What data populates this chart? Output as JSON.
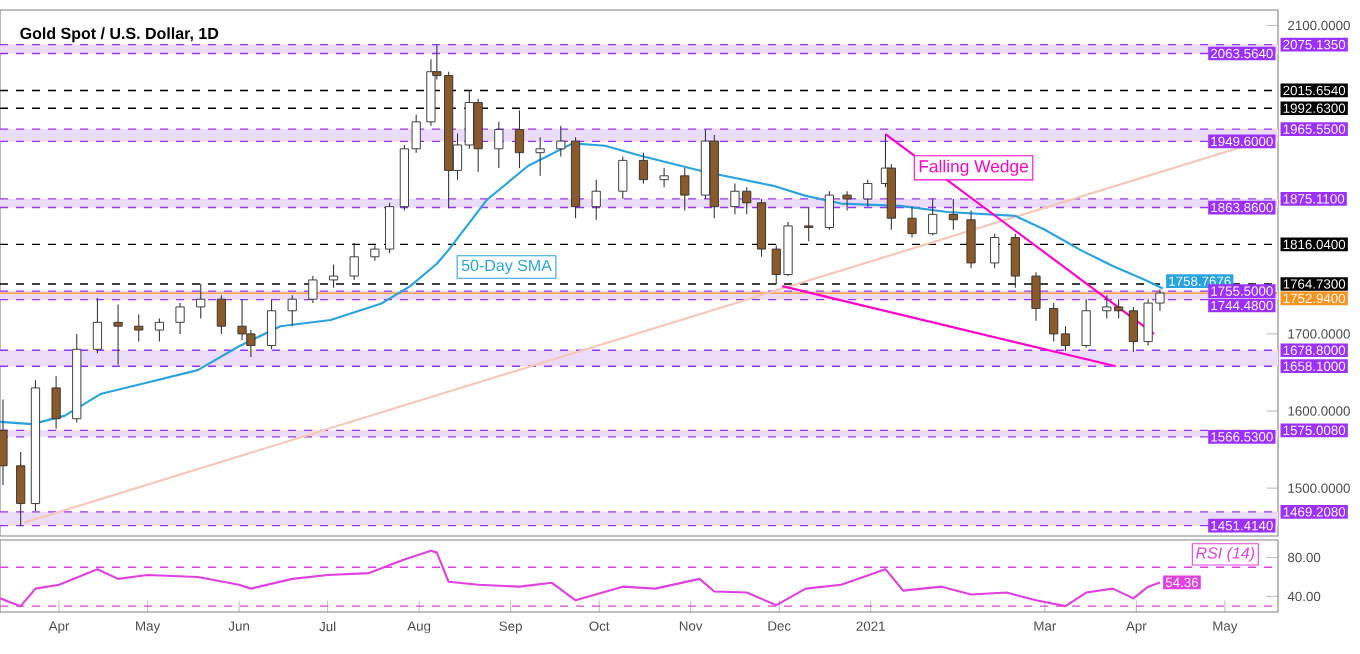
{
  "chart_data": [
    {
      "type": "candlestick",
      "title": "Gold Spot / U.S. Dollar, 1D",
      "x": [
        "2020-03-13",
        "2020-03-19",
        "2020-03-24",
        "2020-03-31",
        "2020-04-07",
        "2020-04-14",
        "2020-04-21",
        "2020-04-28",
        "2020-05-05",
        "2020-05-12",
        "2020-05-19",
        "2020-05-26",
        "2020-06-02",
        "2020-06-05",
        "2020-06-12",
        "2020-06-19",
        "2020-06-26",
        "2020-07-03",
        "2020-07-10",
        "2020-07-17",
        "2020-07-22",
        "2020-07-27",
        "2020-07-31",
        "2020-08-05",
        "2020-08-07",
        "2020-08-11",
        "2020-08-14",
        "2020-08-18",
        "2020-08-21",
        "2020-08-28",
        "2020-09-04",
        "2020-09-11",
        "2020-09-18",
        "2020-09-23",
        "2020-09-30",
        "2020-10-09",
        "2020-10-16",
        "2020-10-23",
        "2020-10-30",
        "2020-11-06",
        "2020-11-09",
        "2020-11-16",
        "2020-11-20",
        "2020-11-25",
        "2020-11-30",
        "2020-12-04",
        "2020-12-11",
        "2020-12-18",
        "2020-12-24",
        "2020-12-31",
        "2021-01-06",
        "2021-01-08",
        "2021-01-15",
        "2021-01-22",
        "2021-01-29",
        "2021-02-04",
        "2021-02-12",
        "2021-02-19",
        "2021-02-26",
        "2021-03-04",
        "2021-03-08",
        "2021-03-15",
        "2021-03-22",
        "2021-03-26",
        "2021-03-31",
        "2021-04-05",
        "2021-04-09"
      ],
      "ohlc": [
        [
          1575,
          1615,
          1504,
          1529
        ],
        [
          1529,
          1547,
          1451,
          1480
        ],
        [
          1480,
          1640,
          1470,
          1630
        ],
        [
          1630,
          1645,
          1577,
          1590
        ],
        [
          1590,
          1700,
          1585,
          1680
        ],
        [
          1680,
          1747,
          1675,
          1715
        ],
        [
          1715,
          1738,
          1660,
          1710
        ],
        [
          1710,
          1725,
          1690,
          1705
        ],
        [
          1705,
          1720,
          1690,
          1715
        ],
        [
          1715,
          1740,
          1700,
          1735
        ],
        [
          1735,
          1765,
          1720,
          1745
        ],
        [
          1745,
          1750,
          1700,
          1710
        ],
        [
          1710,
          1745,
          1692,
          1700
        ],
        [
          1700,
          1705,
          1670,
          1685
        ],
        [
          1685,
          1745,
          1680,
          1730
        ],
        [
          1730,
          1750,
          1710,
          1745
        ],
        [
          1745,
          1775,
          1740,
          1770
        ],
        [
          1770,
          1790,
          1760,
          1775
        ],
        [
          1775,
          1818,
          1770,
          1800
        ],
        [
          1800,
          1815,
          1795,
          1810
        ],
        [
          1810,
          1870,
          1805,
          1865
        ],
        [
          1865,
          1945,
          1860,
          1940
        ],
        [
          1940,
          1984,
          1935,
          1975
        ],
        [
          1975,
          2056,
          1970,
          2040
        ],
        [
          2040,
          2075,
          2030,
          2035
        ],
        [
          2035,
          2040,
          1863,
          1912
        ],
        [
          1912,
          1960,
          1900,
          1945
        ],
        [
          1945,
          2015,
          1940,
          2000
        ],
        [
          2000,
          2005,
          1910,
          1940
        ],
        [
          1940,
          1975,
          1915,
          1965
        ],
        [
          1965,
          1990,
          1915,
          1935
        ],
        [
          1935,
          1955,
          1905,
          1940
        ],
        [
          1940,
          1970,
          1930,
          1950
        ],
        [
          1950,
          1955,
          1850,
          1865
        ],
        [
          1865,
          1900,
          1848,
          1885
        ],
        [
          1885,
          1930,
          1875,
          1925
        ],
        [
          1925,
          1935,
          1895,
          1900
        ],
        [
          1900,
          1915,
          1890,
          1905
        ],
        [
          1905,
          1915,
          1860,
          1880
        ],
        [
          1880,
          1965,
          1875,
          1950
        ],
        [
          1950,
          1958,
          1850,
          1865
        ],
        [
          1865,
          1895,
          1855,
          1885
        ],
        [
          1885,
          1890,
          1855,
          1870
        ],
        [
          1870,
          1875,
          1800,
          1810
        ],
        [
          1810,
          1815,
          1764,
          1777
        ],
        [
          1777,
          1845,
          1775,
          1840
        ],
        [
          1840,
          1865,
          1820,
          1838
        ],
        [
          1838,
          1885,
          1835,
          1880
        ],
        [
          1880,
          1885,
          1860,
          1875
        ],
        [
          1875,
          1900,
          1865,
          1895
        ],
        [
          1895,
          1959,
          1890,
          1915
        ],
        [
          1915,
          1920,
          1835,
          1850
        ],
        [
          1850,
          1865,
          1825,
          1830
        ],
        [
          1830,
          1875,
          1828,
          1855
        ],
        [
          1855,
          1875,
          1835,
          1848
        ],
        [
          1848,
          1860,
          1785,
          1792
        ],
        [
          1792,
          1830,
          1785,
          1825
        ],
        [
          1825,
          1830,
          1760,
          1775
        ],
        [
          1775,
          1780,
          1717,
          1733
        ],
        [
          1733,
          1740,
          1690,
          1700
        ],
        [
          1700,
          1710,
          1678,
          1685
        ],
        [
          1685,
          1745,
          1682,
          1730
        ],
        [
          1730,
          1750,
          1720,
          1735
        ],
        [
          1735,
          1745,
          1720,
          1730
        ],
        [
          1730,
          1735,
          1677,
          1690
        ],
        [
          1690,
          1745,
          1685,
          1740
        ],
        [
          1740,
          1758,
          1730,
          1753
        ]
      ],
      "xlim": [
        "2020-03-12",
        "2021-05-19"
      ],
      "ylim": [
        1438,
        2120
      ],
      "yticks": [
        {
          "value": 1500,
          "label": "1500.0000"
        },
        {
          "value": 1600,
          "label": "1600.0000"
        },
        {
          "value": 1700,
          "label": "1700.0000"
        },
        {
          "value": 2100,
          "label": "2100.0000"
        }
      ],
      "tick_labels": "y",
      "series": [
        {
          "type": "line",
          "color": "#f7c6b5",
          "x": [
            "2020-03-20",
            "2021-05-19"
          ],
          "values": [
            1455,
            1957
          ]
        },
        {
          "type": "line",
          "name": "50-Day SMA",
          "color": "#29a3e0",
          "x": [
            "2020-03-12",
            "2020-03-23",
            "2020-04-03",
            "2020-04-15",
            "2020-05-02",
            "2020-05-18",
            "2020-06-01",
            "2020-06-15",
            "2020-07-02",
            "2020-07-19",
            "2020-07-29",
            "2020-08-07",
            "2020-08-11",
            "2020-08-24",
            "2020-09-07",
            "2020-09-22",
            "2020-10-03",
            "2020-10-15",
            "2020-11-06",
            "2020-11-29",
            "2020-12-10",
            "2020-12-22",
            "2021-01-11",
            "2021-01-27",
            "2021-02-19",
            "2021-03-01",
            "2021-03-13",
            "2021-03-24",
            "2021-04-04",
            "2021-04-10"
          ],
          "values": [
            1586,
            1583,
            1594,
            1622,
            1638,
            1653,
            1684,
            1710,
            1718,
            1739,
            1762,
            1791,
            1809,
            1874,
            1918,
            1947,
            1944,
            1931,
            1910,
            1892,
            1879,
            1869,
            1866,
            1858,
            1853,
            1835,
            1809,
            1788,
            1770,
            1758.7676
          ],
          "value_labels": [
            null,
            null,
            null,
            null,
            null,
            null,
            null,
            null,
            null,
            null,
            null,
            null,
            null,
            null,
            null,
            null,
            null,
            null,
            null,
            null,
            null,
            null,
            null,
            null,
            null,
            null,
            null,
            null,
            null,
            "1758.7676"
          ]
        },
        {
          "type": "line",
          "color": "#ff00cc",
          "x": [
            "2021-01-06",
            "2021-04-07"
          ],
          "values": [
            1959,
            1700
          ]
        },
        {
          "type": "line",
          "color": "#ff00cc",
          "x": [
            "2020-12-02",
            "2021-03-25"
          ],
          "values": [
            1762,
            1658
          ]
        }
      ],
      "bands": [
        {
          "axis": "y",
          "from": 2063.564,
          "to": 2075.135,
          "color": "#ecdcfb"
        },
        {
          "axis": "y",
          "from": 1949.6,
          "to": 1965.55,
          "color": "#ecdcfb"
        },
        {
          "axis": "y",
          "from": 1863.86,
          "to": 1875.11,
          "color": "#ecdcfb"
        },
        {
          "axis": "y",
          "from": 1744.48,
          "to": 1755.5,
          "color": "#ecdcfb"
        },
        {
          "axis": "y",
          "from": 1658.1,
          "to": 1678.8,
          "color": "#ecdcfb"
        },
        {
          "axis": "y",
          "from": 1566.53,
          "to": 1575.008,
          "color": "#ecdcfb"
        },
        {
          "axis": "y",
          "from": 1451.414,
          "to": 1469.208,
          "color": "#ecdcfb"
        }
      ],
      "ref_lines": [
        {
          "axis": "y",
          "value": 2075.135,
          "label": "2075.1350",
          "color": "#9b30ff",
          "line_style": "dashed"
        },
        {
          "axis": "y",
          "value": 2063.564,
          "label": "2063.5640",
          "color": "#9b30ff",
          "line_style": "dashed"
        },
        {
          "axis": "y",
          "value": 2015.654,
          "label": "2015.6540",
          "color": "#000000",
          "line_style": "dashed"
        },
        {
          "axis": "y",
          "value": 1992.63,
          "label": "1992.6300",
          "color": "#000000",
          "line_style": "dashed"
        },
        {
          "axis": "y",
          "value": 1965.55,
          "label": "1965.5500",
          "color": "#9b30ff",
          "line_style": "dashed"
        },
        {
          "axis": "y",
          "value": 1949.6,
          "label": "1949.6000",
          "color": "#9b30ff",
          "line_style": "dashed"
        },
        {
          "axis": "y",
          "value": 1875.11,
          "label": "1875.1100",
          "color": "#9b30ff",
          "line_style": "dashed"
        },
        {
          "axis": "y",
          "value": 1863.86,
          "label": "1863.8600",
          "color": "#9b30ff",
          "line_style": "dashed"
        },
        {
          "axis": "y",
          "value": 1816.04,
          "label": "1816.0400",
          "color": "#000000",
          "line_style": "dashed"
        },
        {
          "axis": "y",
          "value": 1764.73,
          "label": "1764.7300",
          "color": "#000000",
          "line_style": "dashed"
        },
        {
          "axis": "y",
          "value": 1755.5,
          "label": "1755.5000",
          "color": "#9b30ff",
          "line_style": "dashed"
        },
        {
          "axis": "y",
          "value": 1752.94,
          "label": "1752.9400",
          "color": "#f7931e",
          "line_style": "solid"
        },
        {
          "axis": "y",
          "value": 1744.48,
          "label": "1744.4800",
          "color": "#9b30ff",
          "line_style": "dashed"
        },
        {
          "axis": "y",
          "value": 1678.8,
          "label": "1678.8000",
          "color": "#9b30ff",
          "line_style": "dashed"
        },
        {
          "axis": "y",
          "value": 1658.1,
          "label": "1658.1000",
          "color": "#9b30ff",
          "line_style": "dashed"
        },
        {
          "axis": "y",
          "value": 1575.008,
          "label": "1575.0080",
          "color": "#9b30ff",
          "line_style": "dashed"
        },
        {
          "axis": "y",
          "value": 1566.53,
          "label": "1566.5300",
          "color": "#9b30ff",
          "line_style": "dashed"
        },
        {
          "axis": "y",
          "value": 1469.208,
          "label": "1469.2080",
          "color": "#9b30ff",
          "line_style": "dashed"
        },
        {
          "axis": "y",
          "value": 1451.414,
          "label": "1451.4140",
          "color": "#9b30ff",
          "line_style": "dashed"
        }
      ],
      "annotations": [
        "Falling Wedge"
      ]
    },
    {
      "type": "line",
      "series": [
        {
          "name": "RSI (14)",
          "color": "#e040e0",
          "x": [
            "2020-03-12",
            "2020-03-19",
            "2020-03-24",
            "2020-04-01",
            "2020-04-14",
            "2020-04-21",
            "2020-05-01",
            "2020-05-18",
            "2020-06-01",
            "2020-06-05",
            "2020-06-19",
            "2020-07-01",
            "2020-07-15",
            "2020-07-27",
            "2020-08-05",
            "2020-08-07",
            "2020-08-11",
            "2020-08-21",
            "2020-09-04",
            "2020-09-15",
            "2020-09-23",
            "2020-10-09",
            "2020-10-20",
            "2020-11-04",
            "2020-11-09",
            "2020-11-20",
            "2020-11-30",
            "2020-12-10",
            "2020-12-22",
            "2021-01-06",
            "2021-01-12",
            "2021-01-25",
            "2021-02-04",
            "2021-02-16",
            "2021-02-26",
            "2021-03-08",
            "2021-03-15",
            "2021-03-24",
            "2021-03-31",
            "2021-04-05",
            "2021-04-09"
          ],
          "values": [
            38,
            30,
            48,
            52,
            68,
            58,
            62,
            60,
            52,
            48,
            58,
            62,
            64,
            78,
            87,
            85,
            55,
            52,
            50,
            54,
            36,
            50,
            48,
            58,
            45,
            44,
            31,
            48,
            52,
            68,
            46,
            50,
            42,
            44,
            36,
            30,
            44,
            48,
            38,
            50,
            54.36
          ],
          "value_labels": [
            null,
            null,
            null,
            null,
            null,
            null,
            null,
            null,
            null,
            null,
            null,
            null,
            null,
            null,
            null,
            null,
            null,
            null,
            null,
            null,
            null,
            null,
            null,
            null,
            null,
            null,
            null,
            null,
            null,
            null,
            null,
            null,
            null,
            null,
            null,
            null,
            null,
            null,
            null,
            null,
            "54.36"
          ]
        }
      ],
      "xlim": [
        "2020-03-12",
        "2021-05-19"
      ],
      "ylim": [
        24,
        98
      ],
      "xticks": [
        {
          "value": "2020-04-01",
          "label": "Apr"
        },
        {
          "value": "2020-05-01",
          "label": "May"
        },
        {
          "value": "2020-06-01",
          "label": "Jun"
        },
        {
          "value": "2020-07-01",
          "label": "Jul"
        },
        {
          "value": "2020-08-01",
          "label": "Aug"
        },
        {
          "value": "2020-09-01",
          "label": "Sep"
        },
        {
          "value": "2020-10-01",
          "label": "Oct"
        },
        {
          "value": "2020-11-01",
          "label": "Nov"
        },
        {
          "value": "2020-12-01",
          "label": "Dec"
        },
        {
          "value": "2021-01-01",
          "label": "2021"
        },
        {
          "value": "2021-03-01",
          "label": "Mar"
        },
        {
          "value": "2021-04-01",
          "label": "Apr"
        },
        {
          "value": "2021-05-01",
          "label": "May"
        }
      ],
      "yticks": [
        {
          "value": 40,
          "label": "40.00"
        },
        {
          "value": 80,
          "label": "80.00"
        }
      ],
      "ref_lines": [
        {
          "axis": "y",
          "value": 70,
          "color": "#e040e0",
          "line_style": "dashed"
        },
        {
          "axis": "y",
          "value": 30,
          "color": "#e040e0",
          "line_style": "dashed"
        }
      ]
    }
  ]
}
